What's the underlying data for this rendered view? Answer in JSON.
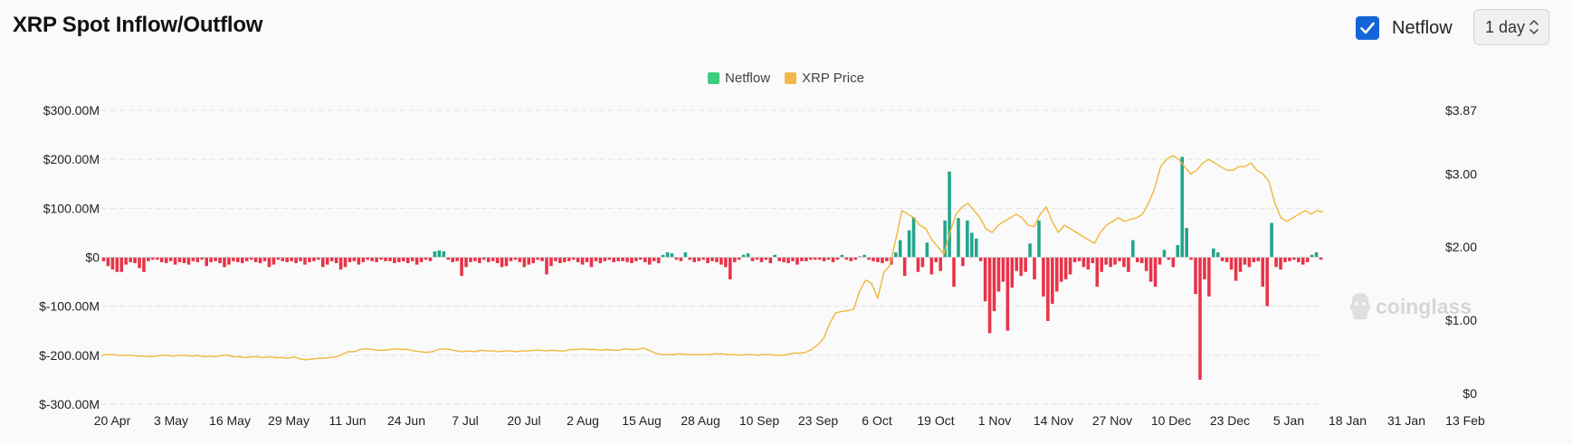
{
  "header": {
    "title": "XRP Spot Inflow/Outflow",
    "netflow_label": "Netflow",
    "netflow_checked": true,
    "interval_value": "1 day"
  },
  "legend": [
    {
      "label": "Netflow",
      "color": "#3ecc7e"
    },
    {
      "label": "XRP Price",
      "color": "#f2b84b"
    }
  ],
  "watermark": "coinglass",
  "colors": {
    "positive": "#21a58b",
    "negative": "#ea3248",
    "price": "#f0b73a",
    "grid": "#e3e3e3"
  },
  "chart_data": {
    "type": "bar+line",
    "xlabels": [
      "20 Apr",
      "3 May",
      "16 May",
      "29 May",
      "11 Jun",
      "24 Jun",
      "7 Jul",
      "20 Jul",
      "2 Aug",
      "15 Aug",
      "28 Aug",
      "10 Sep",
      "23 Sep",
      "6 Oct",
      "19 Oct",
      "1 Nov",
      "14 Nov",
      "27 Nov",
      "10 Dec",
      "23 Dec",
      "5 Jan",
      "18 Jan",
      "31 Jan",
      "13 Feb"
    ],
    "yleft": {
      "ticks": [
        "$300.00M",
        "$200.00M",
        "$100.00M",
        "$0",
        "$-100.00M",
        "$-200.00M",
        "$-300.00M"
      ],
      "range": [
        -300,
        300
      ],
      "unit": "M USD"
    },
    "yright": {
      "ticks": [
        "$3.87",
        "$3.00",
        "$2.00",
        "$1.00",
        "$0"
      ],
      "range": [
        0,
        3.87
      ],
      "unit": "USD"
    },
    "series": [
      {
        "name": "Netflow",
        "axis": "left",
        "values": [
          -8,
          -18,
          -25,
          -30,
          -30,
          -15,
          -10,
          -12,
          -22,
          -30,
          -8,
          -5,
          -5,
          -10,
          -12,
          -8,
          -15,
          -10,
          -12,
          -15,
          -8,
          -10,
          -5,
          -18,
          -10,
          -8,
          -12,
          -20,
          -15,
          -8,
          -10,
          -12,
          -8,
          -5,
          -10,
          -12,
          -8,
          -20,
          -15,
          -5,
          -8,
          -10,
          -8,
          -12,
          -8,
          -15,
          -10,
          -8,
          -5,
          -20,
          -15,
          -8,
          -12,
          -25,
          -20,
          -10,
          -8,
          -15,
          -10,
          -5,
          -8,
          -10,
          -5,
          -8,
          -8,
          -12,
          -10,
          -8,
          -12,
          -8,
          -15,
          -10,
          -5,
          -8,
          12,
          14,
          12,
          -5,
          -10,
          -8,
          -38,
          -20,
          -10,
          -8,
          -12,
          -5,
          -10,
          -8,
          -12,
          -20,
          -18,
          -8,
          -5,
          -10,
          -20,
          -15,
          -12,
          -5,
          -8,
          -35,
          -18,
          -8,
          -12,
          -10,
          -8,
          -5,
          -10,
          -15,
          -10,
          -20,
          -8,
          -12,
          -8,
          -5,
          -10,
          -8,
          -8,
          -10,
          -12,
          -8,
          -5,
          -10,
          -15,
          -8,
          -12,
          5,
          10,
          8,
          -5,
          -8,
          10,
          -5,
          -10,
          -8,
          -5,
          -12,
          -8,
          -10,
          -15,
          -20,
          -45,
          -10,
          -5,
          5,
          8,
          -8,
          -5,
          -10,
          -5,
          -12,
          5,
          -8,
          -10,
          -12,
          -8,
          -15,
          -8,
          -8,
          -5,
          -5,
          -5,
          -8,
          -5,
          -10,
          -5,
          5,
          -5,
          -8,
          -5,
          2,
          5,
          -5,
          -8,
          -10,
          -12,
          -8,
          -15,
          10,
          35,
          -38,
          55,
          82,
          -30,
          -20,
          30,
          -35,
          -10,
          -28,
          75,
          175,
          -60,
          80,
          -18,
          75,
          50,
          38,
          -8,
          -90,
          -155,
          -110,
          -70,
          -50,
          -150,
          -62,
          -28,
          -38,
          -30,
          28,
          -45,
          75,
          -80,
          -130,
          -95,
          -70,
          -50,
          -45,
          -35,
          -10,
          -8,
          -20,
          -25,
          -12,
          -60,
          -30,
          -15,
          -20,
          -15,
          -8,
          -20,
          -30,
          35,
          -10,
          -12,
          -28,
          -50,
          -60,
          -15,
          15,
          -5,
          -20,
          25,
          205,
          60,
          -5,
          -75,
          -250,
          -45,
          -80,
          18,
          10,
          -8,
          -10,
          -25,
          -48,
          -30,
          -15,
          -20,
          -10,
          -8,
          -60,
          -100,
          70,
          -20,
          -25,
          -10,
          -8,
          -5,
          -10,
          -15,
          -10,
          5,
          10,
          -5
        ]
      },
      {
        "name": "XRP Price",
        "axis": "right",
        "values": [
          0.52,
          0.53,
          0.53,
          0.52,
          0.52,
          0.52,
          0.51,
          0.51,
          0.5,
          0.51,
          0.52,
          0.52,
          0.51,
          0.52,
          0.52,
          0.51,
          0.52,
          0.5,
          0.51,
          0.5,
          0.52,
          0.52,
          0.5,
          0.5,
          0.49,
          0.5,
          0.5,
          0.49,
          0.5,
          0.49,
          0.49,
          0.48,
          0.5,
          0.47,
          0.46,
          0.47,
          0.48,
          0.48,
          0.49,
          0.5,
          0.53,
          0.57,
          0.57,
          0.6,
          0.61,
          0.6,
          0.59,
          0.59,
          0.6,
          0.61,
          0.6,
          0.6,
          0.58,
          0.57,
          0.56,
          0.57,
          0.6,
          0.61,
          0.6,
          0.58,
          0.57,
          0.58,
          0.57,
          0.59,
          0.58,
          0.58,
          0.57,
          0.58,
          0.58,
          0.57,
          0.58,
          0.58,
          0.59,
          0.59,
          0.58,
          0.59,
          0.58,
          0.58,
          0.6,
          0.6,
          0.61,
          0.6,
          0.6,
          0.59,
          0.6,
          0.59,
          0.59,
          0.61,
          0.6,
          0.6,
          0.62,
          0.59,
          0.55,
          0.53,
          0.53,
          0.53,
          0.54,
          0.53,
          0.53,
          0.53,
          0.53,
          0.53,
          0.54,
          0.54,
          0.53,
          0.53,
          0.52,
          0.53,
          0.53,
          0.52,
          0.53,
          0.53,
          0.52,
          0.52,
          0.53,
          0.55,
          0.55,
          0.56,
          0.6,
          0.66,
          0.75,
          0.95,
          1.1,
          1.12,
          1.13,
          1.15,
          1.4,
          1.55,
          1.5,
          1.3,
          1.65,
          1.75,
          2.1,
          2.5,
          2.45,
          2.4,
          2.3,
          2.25,
          2.1,
          2.0,
          1.9,
          2.2,
          2.45,
          2.55,
          2.6,
          2.5,
          2.4,
          2.25,
          2.2,
          2.3,
          2.35,
          2.4,
          2.45,
          2.4,
          2.3,
          2.28,
          2.45,
          2.55,
          2.35,
          2.2,
          2.3,
          2.25,
          2.2,
          2.15,
          2.1,
          2.05,
          2.2,
          2.3,
          2.35,
          2.4,
          2.35,
          2.38,
          2.4,
          2.45,
          2.6,
          2.8,
          3.1,
          3.2,
          3.25,
          3.2,
          3.1,
          3.0,
          3.05,
          3.15,
          3.2,
          3.15,
          3.1,
          3.05,
          3.05,
          3.1,
          3.1,
          3.15,
          3.05,
          3.0,
          2.9,
          2.6,
          2.4,
          2.35,
          2.4,
          2.45,
          2.5,
          2.45,
          2.5,
          2.48
        ]
      }
    ]
  }
}
